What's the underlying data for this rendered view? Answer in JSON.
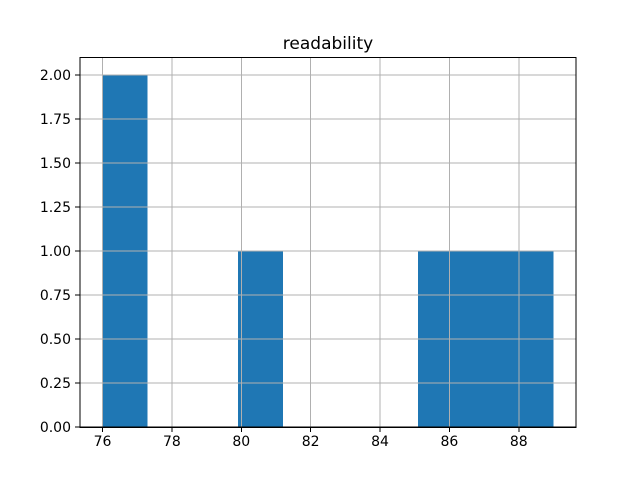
{
  "chart_data": {
    "type": "bar",
    "subtype": "histogram",
    "title": "readability",
    "xlabel": "",
    "ylabel": "",
    "bin_edges": [
      76.0,
      77.3,
      78.6,
      79.9,
      81.2,
      82.5,
      83.8,
      85.1,
      86.4,
      87.7,
      89.0
    ],
    "counts": [
      2,
      0,
      0,
      1,
      0,
      0,
      0,
      1,
      1,
      1
    ],
    "xlim": [
      75.35,
      89.65
    ],
    "ylim": [
      0,
      2.1
    ],
    "xticks": [
      76,
      78,
      80,
      82,
      84,
      86,
      88
    ],
    "xtick_labels": [
      "76",
      "78",
      "80",
      "82",
      "84",
      "86",
      "88"
    ],
    "yticks": [
      0,
      0.25,
      0.5,
      0.75,
      1.0,
      1.25,
      1.5,
      1.75,
      2.0
    ],
    "ytick_labels": [
      "0.00",
      "0.25",
      "0.50",
      "0.75",
      "1.00",
      "1.25",
      "1.50",
      "1.75",
      "2.00"
    ],
    "grid": true,
    "grid_over_bars": true,
    "legend": null,
    "colors": {
      "bar": "#1f77b4",
      "grid": "#b0b0b0",
      "spine": "#000000",
      "text": "#000000",
      "background": "#ffffff"
    }
  }
}
